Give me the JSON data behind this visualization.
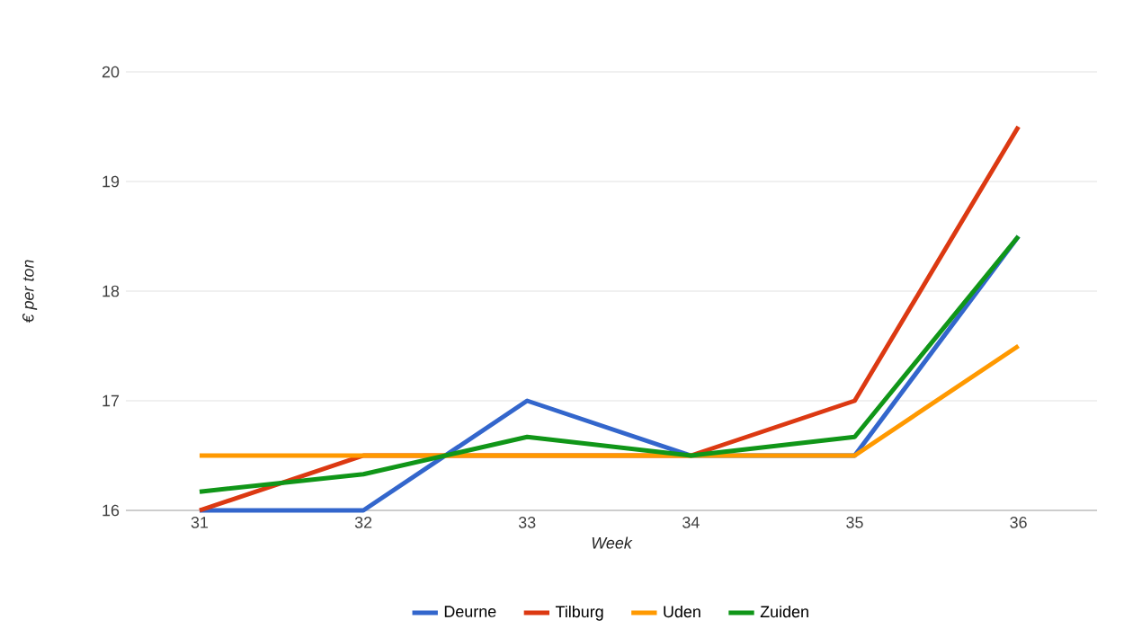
{
  "chart_data": {
    "type": "line",
    "xlabel": "Week",
    "ylabel": "€ per ton",
    "categories": [
      "31",
      "32",
      "33",
      "34",
      "35",
      "36"
    ],
    "series": [
      {
        "name": "Deurne",
        "color": "#3366cc",
        "values": [
          16,
          16,
          17,
          16.5,
          16.5,
          18.5
        ]
      },
      {
        "name": "Tilburg",
        "color": "#dc3912",
        "values": [
          16,
          16.5,
          16.5,
          16.5,
          17,
          19.5
        ]
      },
      {
        "name": "Uden",
        "color": "#ff9900",
        "values": [
          16.5,
          16.5,
          16.5,
          16.5,
          16.5,
          17.5
        ]
      },
      {
        "name": "Zuiden",
        "color": "#109618",
        "values": [
          16.17,
          16.33,
          16.67,
          16.5,
          16.67,
          18.5
        ]
      }
    ],
    "ylim": [
      16,
      20
    ],
    "yticks": [
      16,
      17,
      18,
      19,
      20
    ],
    "grid": "y",
    "legend": "bottom",
    "marker": "none",
    "line_style": "solid"
  }
}
